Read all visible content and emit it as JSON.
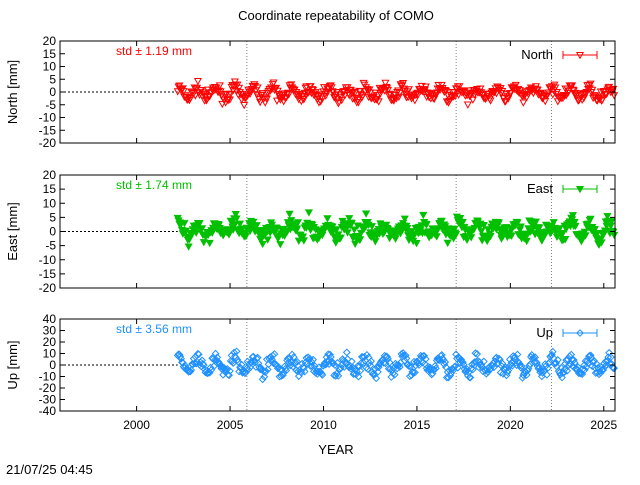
{
  "title": "Coordinate repeatability of COMO",
  "timestamp": "21/07/25 04:45",
  "colors": {
    "north": "#ff0000",
    "east": "#00c000",
    "up": "#1e90ff",
    "axis": "#000000",
    "vgrid": "#808080"
  },
  "chart_data": {
    "type": "scatter",
    "title": "Coordinate repeatability of COMO",
    "xlabel": "YEAR",
    "xlim": [
      1995.9,
      2025.6
    ],
    "xticks": [
      2000,
      2005,
      2010,
      2015,
      2020,
      2025
    ],
    "xtick_labels": [
      "2000",
      "2005",
      "2010",
      "2015",
      "2020",
      "2025"
    ],
    "vertical_grid_lines": [
      2005.9,
      2017.1,
      2022.2
    ],
    "zero_reference_line": {
      "style": "dotted",
      "from": 1995.9,
      "to": 2002.2
    },
    "data_start": 2002.2,
    "data_end": 2025.6,
    "legend_position": "top-right",
    "panels": [
      {
        "key": "north",
        "series_name": "North",
        "ylabel": "North [mm]",
        "ylim": [
          -20,
          20
        ],
        "yticks": [
          -20,
          -15,
          -10,
          -5,
          0,
          5,
          10,
          15,
          20
        ],
        "std_label": "std ± 1.19 mm",
        "std_mm": 1.19,
        "marker": "open-triangle-down",
        "color": "#ff0000",
        "y_range_min": -6,
        "y_range_max": 5
      },
      {
        "key": "east",
        "series_name": "East",
        "ylabel": "East [mm]",
        "ylim": [
          -20,
          20
        ],
        "yticks": [
          -20,
          -15,
          -10,
          -5,
          0,
          5,
          10,
          15,
          20
        ],
        "std_label": "std ± 1.74 mm",
        "std_mm": 1.74,
        "marker": "filled-triangle-down",
        "color": "#00c000",
        "y_range_min": -6,
        "y_range_max": 7
      },
      {
        "key": "up",
        "series_name": "Up",
        "ylabel": "Up [mm]",
        "ylim": [
          -40,
          40
        ],
        "yticks": [
          -40,
          -30,
          -20,
          -10,
          0,
          10,
          20,
          30,
          40
        ],
        "std_label": "std ± 3.56 mm",
        "std_mm": 3.56,
        "marker": "open-diamond",
        "color": "#1e90ff",
        "y_range_min": -18,
        "y_range_max": 17
      }
    ]
  }
}
